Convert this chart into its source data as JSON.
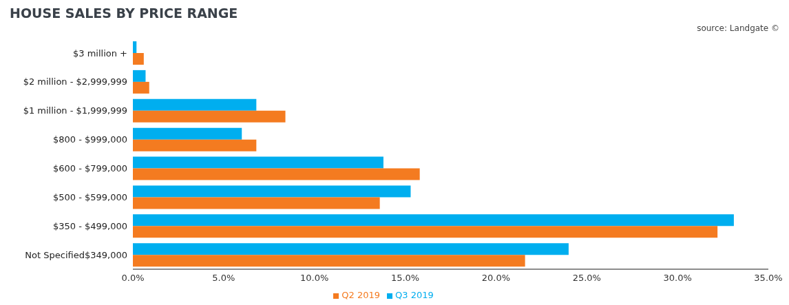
{
  "chart_data": {
    "type": "bar",
    "orientation": "horizontal",
    "title": "HOUSE SALES BY PRICE RANGE",
    "annotations": [
      "source: Landgate ©"
    ],
    "categories": [
      "$3 million +",
      "$2 million - $2,999,999",
      "$1 million - $1,999,999",
      "$800 - $999,000",
      "$600 - $799,000",
      "$500 - $599,000",
      "$350 - $499,000",
      "Not Specified$349,000"
    ],
    "series": [
      {
        "name": "Q3 2019",
        "color": "#00aeef",
        "values": [
          0.2,
          0.7,
          6.8,
          6.0,
          13.8,
          15.3,
          33.1,
          24.0
        ]
      },
      {
        "name": "Q2 2019",
        "color": "#f47b20",
        "values": [
          0.6,
          0.9,
          8.4,
          6.8,
          15.8,
          13.6,
          32.2,
          21.6
        ]
      }
    ],
    "xlim": [
      0,
      35
    ],
    "xticks": [
      {
        "value": 0,
        "label": "0.0%"
      },
      {
        "value": 5,
        "label": "5.0%"
      },
      {
        "value": 10,
        "label": "10.0%"
      },
      {
        "value": 15,
        "label": "15.0%"
      },
      {
        "value": 20,
        "label": "20.0%"
      },
      {
        "value": 25,
        "label": "25.0%"
      },
      {
        "value": 30,
        "label": "30.0%"
      },
      {
        "value": 35,
        "label": "35.0%"
      }
    ],
    "grid": false,
    "legend": "bottom"
  }
}
